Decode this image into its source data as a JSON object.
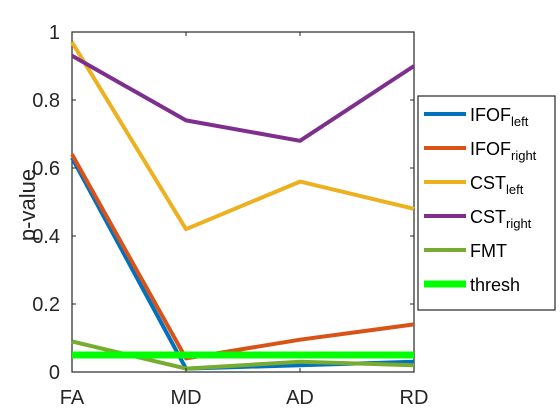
{
  "chart_data": {
    "type": "line",
    "title": "",
    "xlabel": "",
    "ylabel": "p-value",
    "categories": [
      "FA",
      "MD",
      "AD",
      "RD"
    ],
    "ylim": [
      0,
      1
    ],
    "yticks": [
      "0",
      "0.2",
      "0.4",
      "0.6",
      "0.8",
      "1"
    ],
    "grid": false,
    "legend_position": "right",
    "series": [
      {
        "name": "IFOF",
        "subscript": "left",
        "color": "#0072BD",
        "values": [
          0.63,
          0.01,
          0.02,
          0.03
        ]
      },
      {
        "name": "IFOF",
        "subscript": "right",
        "color": "#D95319",
        "values": [
          0.64,
          0.04,
          0.095,
          0.14
        ]
      },
      {
        "name": "CST",
        "subscript": "left",
        "color": "#EDB120",
        "values": [
          0.97,
          0.42,
          0.56,
          0.48
        ]
      },
      {
        "name": "CST",
        "subscript": "right",
        "color": "#7E2F8E",
        "values": [
          0.93,
          0.74,
          0.68,
          0.9
        ]
      },
      {
        "name": "FMT",
        "subscript": "",
        "color": "#77AC30",
        "values": [
          0.09,
          0.01,
          0.03,
          0.02
        ]
      },
      {
        "name": "thresh",
        "subscript": "",
        "color": "#00FF00",
        "values": [
          0.05,
          0.05,
          0.05,
          0.05
        ]
      }
    ]
  }
}
